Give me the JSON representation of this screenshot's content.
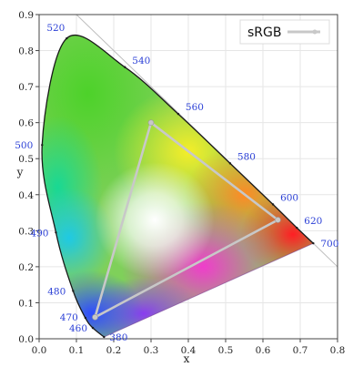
{
  "chart_data": {
    "type": "scatter",
    "title": "",
    "xlabel": "x",
    "ylabel": "y",
    "xlim": [
      0.0,
      0.8
    ],
    "ylim": [
      0.0,
      0.9
    ],
    "x_ticks": [
      "0.0",
      "0.1",
      "0.2",
      "0.3",
      "0.4",
      "0.5",
      "0.6",
      "0.7",
      "0.8"
    ],
    "y_ticks": [
      "0.0",
      "0.1",
      "0.2",
      "0.3",
      "0.4",
      "0.5",
      "0.6",
      "0.7",
      "0.8",
      "0.9"
    ],
    "grid": true,
    "legend_position": "top-right",
    "series": [
      {
        "name": "sRGB",
        "color": "#c8c8c8",
        "x": [
          0.64,
          0.3,
          0.15
        ],
        "y": [
          0.33,
          0.6,
          0.06
        ]
      }
    ],
    "spectral_locus": [
      {
        "nm": "380",
        "x": 0.174,
        "y": 0.005
      },
      {
        "nm": "460",
        "x": 0.144,
        "y": 0.03
      },
      {
        "nm": "470",
        "x": 0.124,
        "y": 0.058
      },
      {
        "nm": "480",
        "x": 0.091,
        "y": 0.133
      },
      {
        "nm": "490",
        "x": 0.045,
        "y": 0.295
      },
      {
        "nm": "500",
        "x": 0.008,
        "y": 0.538
      },
      {
        "nm": "520",
        "x": 0.074,
        "y": 0.834
      },
      {
        "nm": "540",
        "x": 0.23,
        "y": 0.754
      },
      {
        "nm": "560",
        "x": 0.373,
        "y": 0.624
      },
      {
        "nm": "580",
        "x": 0.512,
        "y": 0.487
      },
      {
        "nm": "600",
        "x": 0.627,
        "y": 0.373
      },
      {
        "nm": "620",
        "x": 0.691,
        "y": 0.308
      },
      {
        "nm": "700",
        "x": 0.735,
        "y": 0.265
      }
    ]
  }
}
